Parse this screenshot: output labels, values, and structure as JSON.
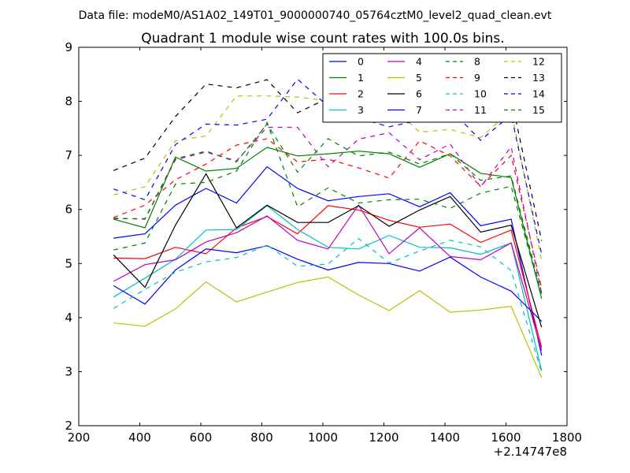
{
  "figure": {
    "suptitle": "Data file: modeM0/AS1A02_149T01_9000000740_05764cztM0_level2_quad_clean.evt"
  },
  "chart_data": {
    "type": "line",
    "title": "Quadrant 1 module wise count rates with 100.0s bins.",
    "xlabel": "",
    "ylabel": "",
    "x_offset_label": "+2.14747e8",
    "xlim": [
      200,
      1800
    ],
    "ylim": [
      2,
      9
    ],
    "xticks": [
      200,
      400,
      600,
      800,
      1000,
      1200,
      1400,
      1600,
      1800
    ],
    "yticks": [
      2,
      3,
      4,
      5,
      6,
      7,
      8,
      9
    ],
    "grid": false,
    "legend": {
      "placement": "top-right",
      "columns": 4
    },
    "x": [
      314,
      417,
      517,
      617,
      717,
      817,
      917,
      1017,
      1117,
      1217,
      1317,
      1417,
      1517,
      1617,
      1717
    ],
    "series": [
      {
        "name": "0",
        "color": "#0000ff",
        "dash": "solid",
        "values": [
          5.47,
          5.55,
          6.08,
          6.39,
          6.12,
          6.79,
          6.39,
          6.16,
          6.24,
          6.29,
          6.05,
          6.31,
          5.7,
          5.82,
          3.3
        ]
      },
      {
        "name": "1",
        "color": "#008000",
        "dash": "solid",
        "values": [
          5.82,
          5.66,
          6.97,
          6.71,
          6.76,
          7.15,
          6.99,
          7.03,
          7.08,
          7.03,
          6.78,
          7.03,
          6.67,
          6.59,
          4.35
        ]
      },
      {
        "name": "2",
        "color": "#ff0000",
        "dash": "solid",
        "values": [
          5.1,
          5.09,
          5.3,
          5.18,
          5.66,
          5.87,
          5.55,
          6.07,
          5.99,
          5.8,
          5.67,
          5.73,
          5.39,
          5.62,
          3.45
        ]
      },
      {
        "name": "3",
        "color": "#00bfbf",
        "dash": "solid",
        "values": [
          4.38,
          4.73,
          5.08,
          5.62,
          5.63,
          6.07,
          5.63,
          5.3,
          5.27,
          5.52,
          5.3,
          5.29,
          5.17,
          5.38,
          3.01
        ]
      },
      {
        "name": "4",
        "color": "#bf00bf",
        "dash": "solid",
        "values": [
          4.67,
          4.98,
          5.07,
          5.4,
          5.57,
          5.88,
          5.43,
          5.27,
          6.08,
          5.18,
          5.66,
          5.13,
          5.07,
          5.38,
          3.39
        ]
      },
      {
        "name": "5",
        "color": "#bfbf00",
        "dash": "solid",
        "values": [
          3.9,
          3.84,
          4.16,
          4.66,
          4.29,
          4.47,
          4.65,
          4.75,
          4.42,
          4.13,
          4.5,
          4.1,
          4.14,
          4.21,
          2.89
        ]
      },
      {
        "name": "6",
        "color": "#000000",
        "dash": "solid",
        "values": [
          5.16,
          4.56,
          5.71,
          6.66,
          5.66,
          6.08,
          5.76,
          5.76,
          6.07,
          5.69,
          5.99,
          6.24,
          5.58,
          5.71,
          3.82
        ]
      },
      {
        "name": "7",
        "color": "#0000ff",
        "dash": "solid",
        "values": [
          4.59,
          4.25,
          4.88,
          5.27,
          5.2,
          5.33,
          5.08,
          4.88,
          5.02,
          5.0,
          4.86,
          5.12,
          4.75,
          4.49,
          3.93
        ]
      },
      {
        "name": "8",
        "color": "#008000",
        "dash": "dashed",
        "values": [
          5.25,
          5.38,
          6.47,
          6.5,
          6.71,
          7.61,
          6.05,
          6.4,
          6.12,
          6.18,
          6.19,
          6.02,
          6.3,
          6.43,
          4.39
        ]
      },
      {
        "name": "9",
        "color": "#ff0000",
        "dash": "dashed",
        "values": [
          5.85,
          6.08,
          6.55,
          6.84,
          7.19,
          7.31,
          6.88,
          6.93,
          6.77,
          6.58,
          7.27,
          6.99,
          6.43,
          7.0,
          4.55
        ]
      },
      {
        "name": "10",
        "color": "#00bfbf",
        "dash": "dashed",
        "values": [
          4.17,
          4.52,
          4.84,
          5.03,
          5.11,
          5.34,
          4.95,
          4.99,
          5.46,
          5.01,
          5.23,
          5.43,
          5.31,
          4.87,
          2.98
        ]
      },
      {
        "name": "11",
        "color": "#bf00bf",
        "dash": "dashed",
        "values": [
          5.84,
          5.82,
          6.92,
          7.06,
          6.9,
          7.52,
          7.52,
          6.79,
          7.3,
          7.42,
          6.92,
          7.21,
          6.42,
          7.16,
          4.45
        ]
      },
      {
        "name": "12",
        "color": "#bfbf00",
        "dash": "dashed",
        "values": [
          6.27,
          6.42,
          7.27,
          7.36,
          8.1,
          8.1,
          8.08,
          8.01,
          8.1,
          7.96,
          7.43,
          7.48,
          7.33,
          7.83,
          5.06
        ]
      },
      {
        "name": "13",
        "color": "#000000",
        "dash": "dashed",
        "values": [
          6.72,
          6.95,
          7.72,
          8.32,
          8.25,
          8.4,
          7.79,
          8.06,
          8.55,
          7.92,
          8.22,
          8.37,
          7.84,
          8.06,
          5.42
        ]
      },
      {
        "name": "14",
        "color": "#0000ff",
        "dash": "dashed",
        "values": [
          6.38,
          6.18,
          7.2,
          7.58,
          7.56,
          7.67,
          8.41,
          7.91,
          7.69,
          7.53,
          7.65,
          7.86,
          7.28,
          7.75,
          5.17
        ]
      },
      {
        "name": "15",
        "color": "#008000",
        "dash": "dashed",
        "values": [
          5.83,
          5.83,
          6.94,
          7.08,
          6.88,
          7.58,
          6.69,
          7.31,
          6.99,
          7.06,
          6.84,
          7.03,
          6.54,
          6.62,
          4.44
        ]
      }
    ]
  }
}
